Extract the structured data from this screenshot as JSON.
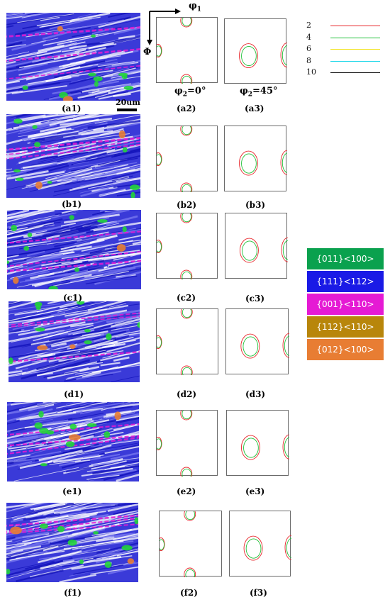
{
  "figure": {
    "panels": [
      {
        "ebsd": "(a1)",
        "odf0": "(a2)",
        "odf45": "(a3)"
      },
      {
        "ebsd": "(b1)",
        "odf0": "(b2)",
        "odf45": "(b3)"
      },
      {
        "ebsd": "(c1)",
        "odf0": "(c2)",
        "odf45": "(c3)"
      },
      {
        "ebsd": "(d1)",
        "odf0": "(d2)",
        "odf45": "(d3)"
      },
      {
        "ebsd": "(e1)",
        "odf0": "(e2)",
        "odf45": "(e3)"
      },
      {
        "ebsd": "(f1)",
        "odf0": "(f2)",
        "odf45": "(f3)"
      }
    ],
    "scale_bar": "20um",
    "axes": {
      "phi1": "φ",
      "phi1_sub": "1",
      "Phi": "Φ"
    },
    "sections": {
      "phi2_0": {
        "main": "φ",
        "sub": "2",
        "rest": "=0°"
      },
      "phi2_45": {
        "main": "φ",
        "sub": "2",
        "rest": "=45°"
      }
    },
    "contour_legend": [
      {
        "level": "2",
        "color": "#e8262b"
      },
      {
        "level": "4",
        "color": "#22c13a"
      },
      {
        "level": "6",
        "color": "#f2e31a"
      },
      {
        "level": "8",
        "color": "#1ad6e8"
      },
      {
        "level": "10",
        "color": "#111111"
      }
    ],
    "texture_legend": [
      {
        "label": "{011}<100>",
        "color": "#0aa14e"
      },
      {
        "label": "{111}<112>",
        "color": "#1a1ae6"
      },
      {
        "label": "{001}<110>",
        "color": "#e51ad4"
      },
      {
        "label": "{112}<110>",
        "color": "#b8860b"
      },
      {
        "label": "{012}<100>",
        "color": "#e87d33"
      }
    ]
  }
}
